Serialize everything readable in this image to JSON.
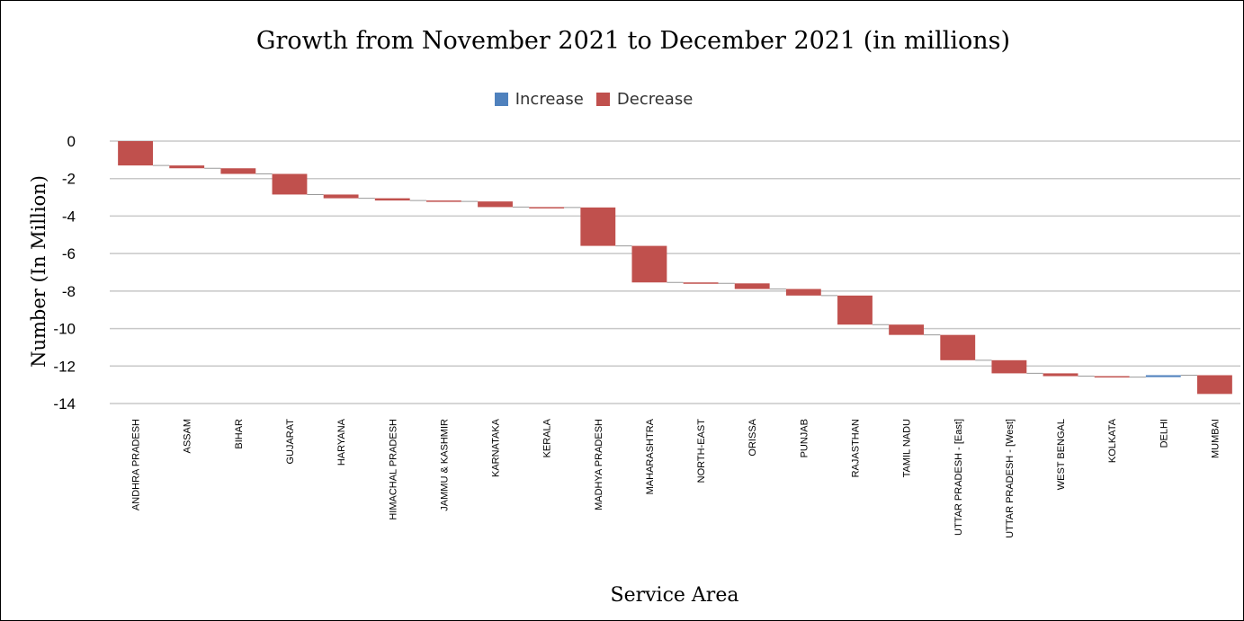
{
  "chart_data": {
    "type": "waterfall",
    "title": "Growth from November 2021 to December 2021 (in millions)",
    "xlabel": "Service Area",
    "ylabel": "Number (In Million)",
    "ylim": [
      -14,
      0
    ],
    "yticks": [
      0,
      -2,
      -4,
      -6,
      -8,
      -10,
      -12,
      -14
    ],
    "grid": true,
    "legend_position": "top-center",
    "legend": [
      {
        "name": "Increase",
        "color": "#4f81bd"
      },
      {
        "name": "Decrease",
        "color": "#c0504d"
      }
    ],
    "categories": [
      "ANDHRA PRADESH",
      "ASSAM",
      "BIHAR",
      "GUJARAT",
      "HARYANA",
      "HIMACHAL PRADESH",
      "JAMMU & KASHMIR",
      "KARNATAKA",
      "KERALA",
      "MADHYA PRADESH",
      "MAHARASHTRA",
      "NORTH-EAST",
      "ORISSA",
      "PUNJAB",
      "RAJASTHAN",
      "TAMIL NADU",
      "UTTAR PRADESH - [East]",
      "UTTAR PRADESH - [West]",
      "WEST BENGAL",
      "KOLKATA",
      "DELHI",
      "MUMBAI"
    ],
    "values": [
      -1.3,
      -0.15,
      -0.3,
      -1.1,
      -0.2,
      -0.12,
      -0.05,
      -0.3,
      -0.02,
      -2.05,
      -1.95,
      -0.05,
      -0.3,
      -0.35,
      -1.55,
      -0.55,
      -1.35,
      -0.7,
      -0.15,
      -0.05,
      0.1,
      -1.0
    ]
  }
}
